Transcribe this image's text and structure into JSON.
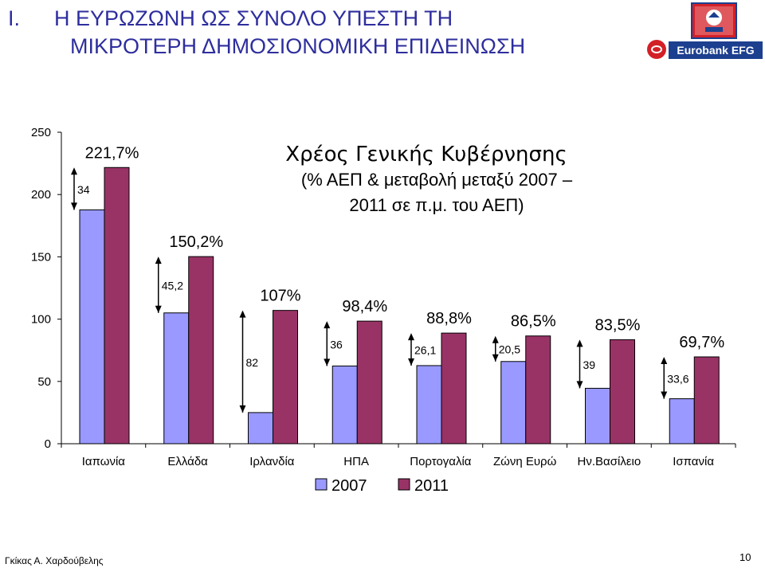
{
  "slide": {
    "number": "I.",
    "title_line1": "Η ΕΥΡΩΖΩΝΗ ΩΣ ΣΥΝΟΛΟ ΥΠΕΣΤΗ ΤΗ",
    "title_line2": "ΜΙΚΡΟΤΕΡΗ ΔΗΜΟΣΙΟΝΟΜΙΚΗ ΕΠΙΔΕΙΝΩΣΗ",
    "logo_text": "Eurobank EFG",
    "footer_author": "Γκίκας Α. Χαρδούβελης",
    "page_number": "10"
  },
  "colors": {
    "title": "#2e2e9e",
    "series_2007": "#9999ff",
    "series_2011": "#993366",
    "logo_blue": "#1c3f8f",
    "logo_red": "#d32027"
  },
  "chart_data": {
    "type": "bar",
    "title": "Χρέος Γενικής Κυβέρνησης",
    "subtitle_line1": "(% ΑΕΠ & μεταβολή μεταξύ 2007 –",
    "subtitle_line2": "2011 σε π.μ. του ΑΕΠ)",
    "categories": [
      "Ιαπωνία",
      "Ελλάδα",
      "Ιρλανδία",
      "ΗΠΑ",
      "Πορτογαλία",
      "Ζώνη Ευρώ",
      "Ην.Βασίλειο",
      "Ισπανία"
    ],
    "series": [
      {
        "name": "2007",
        "values": [
          187.7,
          105.0,
          25.0,
          62.4,
          62.7,
          66.0,
          44.5,
          36.1
        ]
      },
      {
        "name": "2011",
        "values": [
          221.7,
          150.2,
          107.0,
          98.4,
          88.8,
          86.5,
          83.5,
          69.7
        ]
      }
    ],
    "value_labels_2011": [
      "221,7%",
      "150,2%",
      "107%",
      "98,4%",
      "88,8%",
      "86,5%",
      "83,5%",
      "69,7%"
    ],
    "change_labels": [
      "34",
      "45,2",
      "82",
      "36",
      "26,1",
      "20,5",
      "39",
      "33,6"
    ],
    "yticks": [
      0,
      50,
      100,
      150,
      200,
      250
    ],
    "ytick_labels": [
      "0",
      "50",
      "100",
      "150",
      "200",
      "250"
    ],
    "ylim": [
      0,
      250
    ],
    "legend_position": "bottom",
    "grid": false
  }
}
